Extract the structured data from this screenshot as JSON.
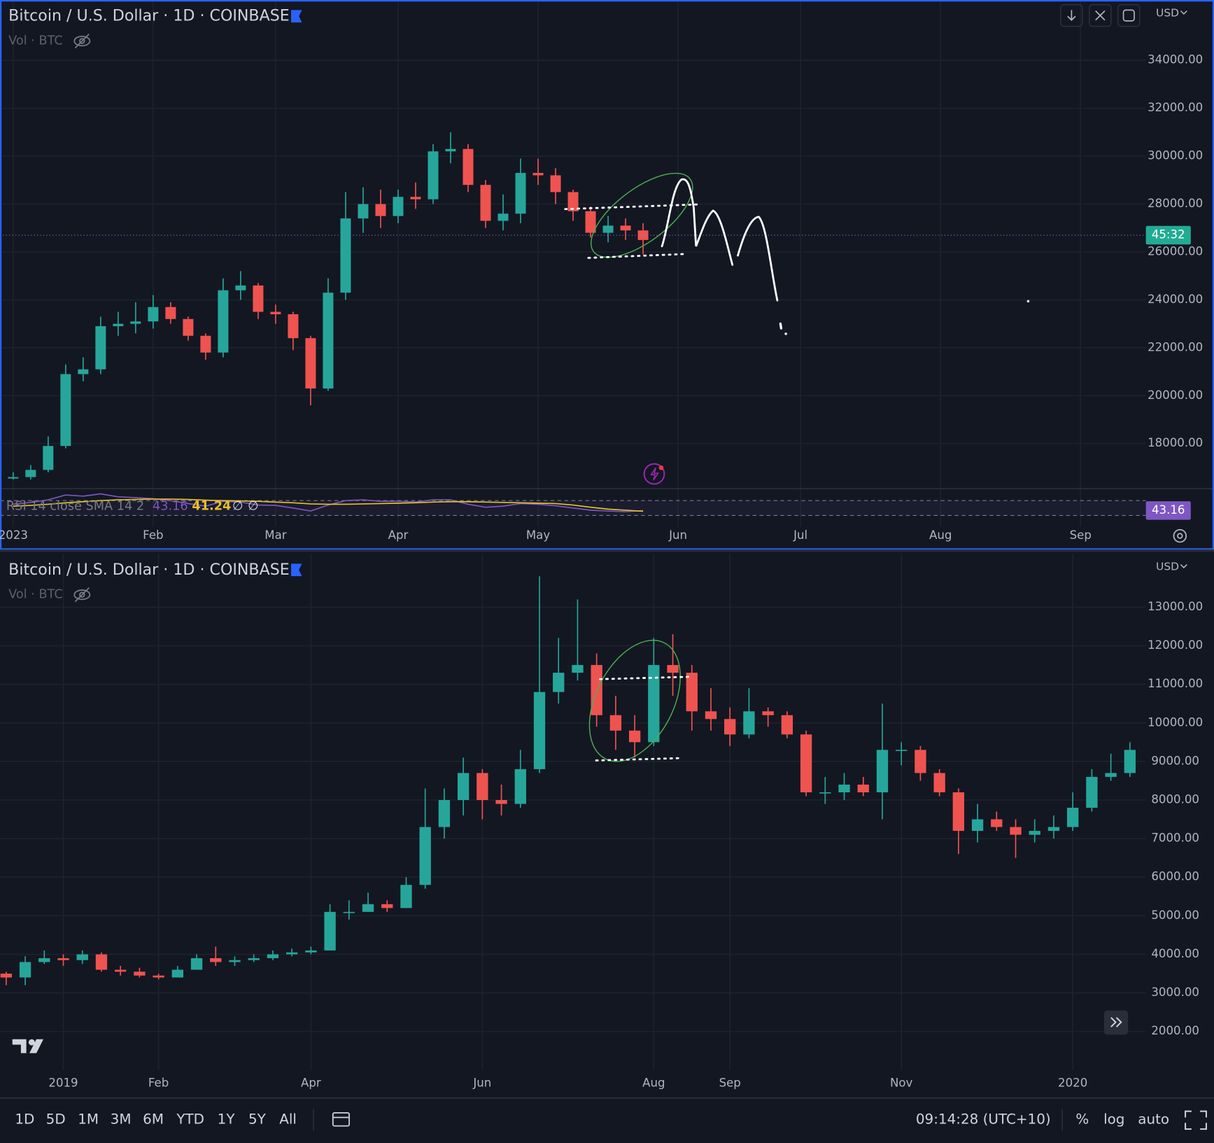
{
  "chart_data": [
    {
      "type": "candlestick",
      "title": "Bitcoin / U.S. Dollar · 1D · COINBASE",
      "subtitle": "Vol · BTC",
      "currency": "USD",
      "countdown": "45:32",
      "price_line": 26700,
      "categories": [
        "2023",
        null,
        null,
        null,
        null,
        null,
        null,
        null,
        "Feb",
        null,
        null,
        null,
        null,
        null,
        null,
        "Mar",
        null,
        null,
        null,
        null,
        null,
        null,
        "Apr",
        null,
        null,
        null,
        null,
        null,
        null,
        null,
        "May",
        null,
        null,
        null,
        null,
        null,
        null,
        null,
        "Jun",
        null,
        null,
        null,
        null,
        null,
        null,
        "Jul",
        null,
        null,
        null,
        null,
        null,
        null,
        null,
        "Aug",
        null,
        null,
        null,
        null,
        null,
        null,
        null,
        "Sep",
        null,
        null,
        null,
        null
      ],
      "open": [
        16540,
        16600,
        16900,
        17900,
        20900,
        21100,
        22900,
        23000,
        23100,
        23700,
        23200,
        22500,
        21800,
        24400,
        24600,
        23500,
        23400,
        22400,
        20300,
        24300,
        27400,
        28000,
        27500,
        28300,
        28200,
        30200,
        30300,
        28800,
        27300,
        27600,
        29300,
        29200,
        28500,
        27700,
        26800,
        27100,
        26900,
        null,
        null,
        null,
        null,
        null,
        null,
        null,
        null,
        null,
        null,
        null,
        null,
        null,
        null,
        null,
        null,
        null,
        null,
        null,
        null,
        null,
        null,
        null,
        null,
        null,
        null,
        null,
        null,
        null
      ],
      "high": [
        16800,
        17100,
        18300,
        21300,
        21600,
        23300,
        23500,
        23900,
        24200,
        23900,
        23300,
        22600,
        24900,
        25200,
        24700,
        23800,
        23500,
        22500,
        24900,
        28500,
        28700,
        28600,
        28600,
        28900,
        30500,
        31000,
        30500,
        29000,
        28400,
        29900,
        29900,
        29500,
        28600,
        27900,
        27500,
        27400,
        27200,
        null,
        null,
        null,
        null,
        null,
        null,
        null,
        null,
        null,
        null,
        null,
        null,
        null,
        null,
        null,
        null,
        null,
        null,
        null,
        null,
        null,
        null,
        null,
        null,
        null,
        null,
        null,
        null,
        null
      ],
      "low": [
        16500,
        16500,
        16800,
        17800,
        20600,
        20900,
        22500,
        22600,
        22800,
        23000,
        22300,
        21500,
        21600,
        24000,
        23200,
        23000,
        21900,
        19600,
        20200,
        24000,
        26800,
        27000,
        27200,
        27800,
        28000,
        29700,
        28500,
        27000,
        26900,
        27200,
        28800,
        28000,
        27300,
        26600,
        26400,
        26500,
        25900,
        null,
        null,
        null,
        null,
        null,
        null,
        null,
        null,
        null,
        null,
        null,
        null,
        null,
        null,
        null,
        null,
        null,
        null,
        null,
        null,
        null,
        null,
        null,
        null,
        null,
        null,
        null,
        null,
        null
      ],
      "close": [
        16600,
        16900,
        17900,
        20900,
        21100,
        22900,
        23000,
        23100,
        23700,
        23200,
        22500,
        21800,
        24400,
        24600,
        23500,
        23400,
        22400,
        20300,
        24300,
        27400,
        28000,
        27500,
        28300,
        28200,
        30200,
        30300,
        28800,
        27300,
        27600,
        29300,
        29200,
        28500,
        27700,
        26800,
        27100,
        26900,
        26500,
        null,
        null,
        null,
        null,
        null,
        null,
        null,
        null,
        null,
        null,
        null,
        null,
        null,
        null,
        null,
        null,
        null,
        null,
        null,
        null,
        null,
        null,
        null,
        null,
        null,
        null,
        null,
        null,
        null
      ],
      "up_color": "#26a69a",
      "down_color": "#ef5350",
      "ylim": [
        16150,
        36520
      ],
      "yticks": [
        {
          "value": 18000,
          "label": "18000.00"
        },
        {
          "value": 20000,
          "label": "20000.00"
        },
        {
          "value": 22000,
          "label": "22000.00"
        },
        {
          "value": 24000,
          "label": "24000.00"
        },
        {
          "value": 26000,
          "label": "26000.00"
        },
        {
          "value": 28000,
          "label": "28000.00"
        },
        {
          "value": 30000,
          "label": "30000.00"
        },
        {
          "value": 32000,
          "label": "32000.00"
        },
        {
          "value": 34000,
          "label": "34000.00"
        }
      ],
      "grid": true,
      "indicator": {
        "name": "RSI 14 close SMA 14 2",
        "values": [
          60,
          65,
          72,
          85,
          82,
          88,
          80,
          78,
          75,
          70,
          62,
          55,
          68,
          66,
          58,
          57,
          50,
          42,
          58,
          70,
          72,
          68,
          68,
          66,
          72,
          72,
          60,
          52,
          55,
          62,
          60,
          56,
          50,
          44,
          42,
          40,
          43.16,
          null,
          null,
          null,
          null,
          null,
          null,
          null,
          null,
          null,
          null,
          null,
          null,
          null,
          null,
          null,
          null,
          null,
          null,
          null,
          null,
          null,
          null,
          null,
          null,
          null,
          null,
          null,
          null,
          null
        ],
        "sma": [
          55,
          57,
          60,
          64,
          67,
          70,
          72,
          73,
          74,
          74,
          73,
          71,
          70,
          69,
          68,
          66,
          64,
          61,
          60,
          60,
          61,
          62,
          63,
          64,
          66,
          67,
          67,
          66,
          65,
          64,
          63,
          62,
          58,
          52,
          47,
          44,
          41.24,
          null,
          null,
          null,
          null,
          null,
          null,
          null,
          null,
          null,
          null,
          null,
          null,
          null,
          null,
          null,
          null,
          null,
          null,
          null,
          null,
          null,
          null,
          null,
          null,
          null,
          null,
          null,
          null,
          null
        ],
        "color": "#7e57c2",
        "sma_color": "#e6c229",
        "ylim": [
          0,
          100
        ],
        "bands": [
          70,
          30
        ],
        "empty_labels": [
          "∅",
          "∅"
        ]
      }
    },
    {
      "type": "candlestick",
      "title": "Bitcoin / U.S. Dollar · 1D · COINBASE",
      "subtitle": "Vol · BTC",
      "currency": "USD",
      "categories": [
        null,
        null,
        null,
        "2019",
        null,
        null,
        null,
        null,
        "Feb",
        null,
        null,
        null,
        null,
        null,
        null,
        null,
        "Apr",
        null,
        null,
        null,
        null,
        null,
        null,
        null,
        null,
        "Jun",
        null,
        null,
        null,
        null,
        null,
        null,
        null,
        null,
        "Aug",
        null,
        null,
        null,
        "Sep",
        null,
        null,
        null,
        null,
        null,
        null,
        null,
        null,
        "Nov",
        null,
        null,
        null,
        null,
        null,
        null,
        null,
        null,
        "2020",
        null,
        null,
        null
      ],
      "open": [
        3500,
        3400,
        3800,
        3900,
        3850,
        4000,
        3600,
        3550,
        3450,
        3400,
        3600,
        3900,
        3800,
        3850,
        3900,
        4000,
        4050,
        4100,
        5100,
        5100,
        5300,
        5200,
        5800,
        7300,
        8000,
        8700,
        8000,
        7900,
        8800,
        10800,
        11300,
        11500,
        10200,
        9800,
        9500,
        11500,
        11300,
        10300,
        10100,
        9700,
        10300,
        10200,
        9700,
        8200,
        8200,
        8400,
        8200,
        9300,
        9300,
        8700,
        8200,
        7200,
        7500,
        7300,
        7100,
        7200,
        7300,
        7800,
        8600,
        8700
      ],
      "high": [
        3550,
        3950,
        4100,
        4000,
        4100,
        4050,
        3700,
        3650,
        3500,
        3700,
        4000,
        4200,
        3950,
        4000,
        4100,
        4150,
        4200,
        5300,
        5400,
        5600,
        5400,
        6000,
        8300,
        8300,
        9100,
        8800,
        8400,
        9300,
        13800,
        12200,
        13200,
        11800,
        10700,
        10200,
        12200,
        12300,
        11500,
        10900,
        10400,
        10900,
        10400,
        10300,
        9800,
        8600,
        8700,
        8600,
        10500,
        9500,
        9400,
        8800,
        8300,
        7900,
        7700,
        7500,
        7500,
        7600,
        8200,
        8800,
        9200,
        9500
      ],
      "low": [
        3200,
        3200,
        3750,
        3700,
        3750,
        3550,
        3450,
        3400,
        3350,
        3400,
        3600,
        3700,
        3700,
        3800,
        3850,
        3950,
        4000,
        4100,
        4900,
        5100,
        5100,
        5200,
        5700,
        7000,
        7600,
        7500,
        7600,
        7800,
        8700,
        10500,
        11100,
        9900,
        9300,
        9100,
        9400,
        10700,
        9800,
        9800,
        9400,
        9600,
        9900,
        9600,
        8100,
        7900,
        8000,
        8100,
        7500,
        8900,
        8500,
        8100,
        6600,
        6900,
        7200,
        6500,
        6900,
        7000,
        7200,
        7700,
        8500,
        8600
      ],
      "close": [
        3400,
        3800,
        3900,
        3850,
        4000,
        3600,
        3550,
        3450,
        3400,
        3600,
        3900,
        3800,
        3850,
        3900,
        4000,
        4050,
        4100,
        5100,
        5100,
        5300,
        5200,
        5800,
        7300,
        8000,
        8700,
        8000,
        7900,
        8800,
        10800,
        11300,
        11500,
        10200,
        9800,
        9500,
        11500,
        11300,
        10300,
        10100,
        9700,
        10300,
        10200,
        9700,
        8200,
        8200,
        8400,
        8200,
        9300,
        9300,
        8700,
        8200,
        7200,
        7500,
        7300,
        7100,
        7200,
        7300,
        7800,
        8600,
        8700,
        9300
      ],
      "up_color": "#26a69a",
      "down_color": "#ef5350",
      "ylim": [
        996,
        14386
      ],
      "yticks": [
        {
          "value": 2000,
          "label": "2000.00"
        },
        {
          "value": 3000,
          "label": "3000.00"
        },
        {
          "value": 4000,
          "label": "4000.00"
        },
        {
          "value": 5000,
          "label": "5000.00"
        },
        {
          "value": 6000,
          "label": "6000.00"
        },
        {
          "value": 7000,
          "label": "7000.00"
        },
        {
          "value": 8000,
          "label": "8000.00"
        },
        {
          "value": 9000,
          "label": "9000.00"
        },
        {
          "value": 10000,
          "label": "10000.00"
        },
        {
          "value": 11000,
          "label": "11000.00"
        },
        {
          "value": 12000,
          "label": "12000.00"
        },
        {
          "value": 13000,
          "label": "13000.00"
        }
      ],
      "grid": true
    }
  ],
  "toolbar": {
    "intervals": [
      "1D",
      "5D",
      "1M",
      "3M",
      "6M",
      "YTD",
      "1Y",
      "5Y",
      "All"
    ],
    "clock": "09:14:28 (UTC+10)",
    "options": [
      "%",
      "log",
      "auto"
    ]
  }
}
